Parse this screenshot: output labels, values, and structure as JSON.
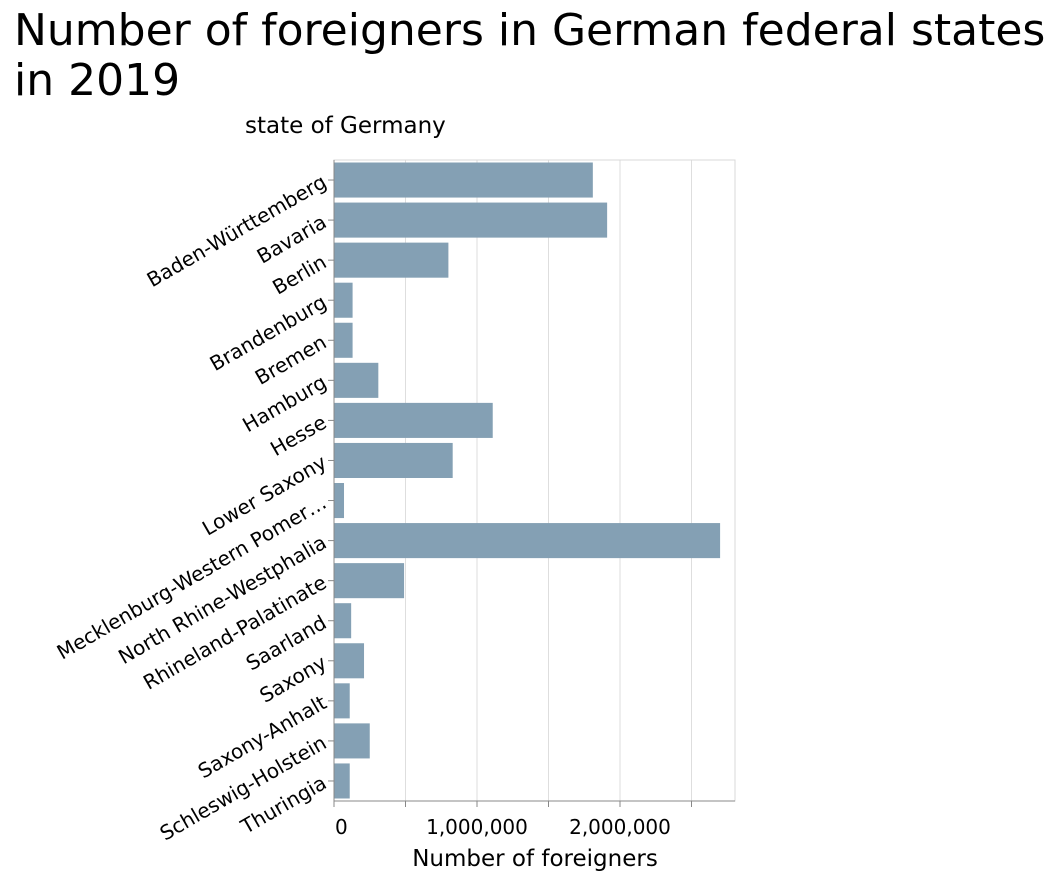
{
  "chart_data": {
    "type": "bar",
    "orientation": "horizontal",
    "title": "Number of foreigners in German federal states in 2019",
    "ylabel": "state of Germany",
    "xlabel": "Number of foreigners",
    "xlim": [
      0,
      2800000
    ],
    "x_ticks": [
      0,
      500000,
      1000000,
      1500000,
      2000000,
      2500000
    ],
    "x_tick_labels": [
      "0",
      "",
      "1,000,000",
      "",
      "2,000,000",
      ""
    ],
    "grid": true,
    "bar_color": "#84a0b4",
    "categories": [
      "Baden-Württemberg",
      "Bavaria",
      "Berlin",
      "Brandenburg",
      "Bremen",
      "Hamburg",
      "Hesse",
      "Lower Saxony",
      "Mecklenburg-Western Pomer…",
      "North Rhine-Westphalia",
      "Rhineland-Palatinate",
      "Saarland",
      "Saxony",
      "Saxony-Anhalt",
      "Schleswig-Holstein",
      "Thuringia"
    ],
    "values": [
      1810000,
      1910000,
      800000,
      130000,
      130000,
      310000,
      1110000,
      830000,
      70000,
      2700000,
      490000,
      120000,
      210000,
      110000,
      250000,
      110000
    ]
  }
}
